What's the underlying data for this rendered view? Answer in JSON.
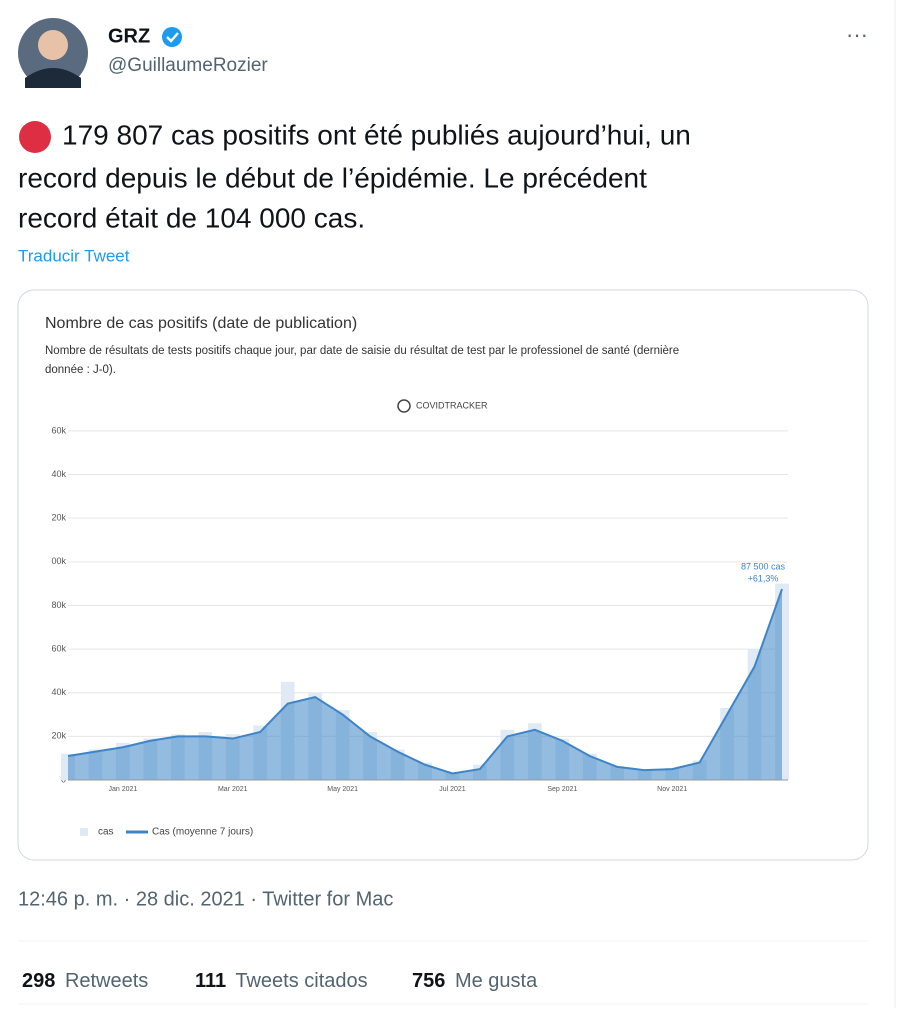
{
  "tweet": {
    "name": "GRZ",
    "handle": "@GuillaumeRozier",
    "more": "···",
    "text_lines": [
      "179 807 cas positifs ont été publiés aujourd’hui, un",
      "record depuis le début de l’épidémie. Le précédent",
      "record était de 104 000 cas."
    ],
    "translate": "Traducir Tweet",
    "meta": "12:46 p. m. · 28 dic. 2021 · Twitter for Mac",
    "stats": [
      {
        "count": "298",
        "label": "Retweets"
      },
      {
        "count": "111",
        "label": "Tweets citados"
      },
      {
        "count": "756",
        "label": "Me gusta"
      }
    ]
  },
  "chart_data": {
    "type": "line",
    "title": "Nombre de cas positifs (date de publication)",
    "subtitle_lines": [
      "Nombre de résultats de tests positifs chaque jour, par date de saisie du résultat de test par le professionel de santé (dernière",
      "donnée : J-0)."
    ],
    "logo": "COVIDTRACKER",
    "annotations": [
      "87 500 cas",
      "+61,3%"
    ],
    "categories": [
      null,
      null,
      "Jan 2021",
      null,
      null,
      null,
      "Mar 2021",
      null,
      null,
      null,
      "May 2021",
      null,
      null,
      null,
      "Jul 2021",
      null,
      null,
      null,
      "Sep 2021",
      null,
      null,
      null,
      "Nov 2021",
      null,
      null,
      null,
      null
    ],
    "series": [
      {
        "name": "cas",
        "color": "#dfeaf5",
        "values": [
          12000,
          14000,
          17000,
          19000,
          21000,
          22000,
          21000,
          25000,
          45000,
          40000,
          32000,
          22000,
          14000,
          8000,
          3500,
          7000,
          23000,
          26000,
          19000,
          12000,
          6500,
          5000,
          5500,
          9000,
          33000,
          60000,
          90000
        ]
      },
      {
        "name": "Cas (moyenne 7 jours)",
        "color": "#3d85c6",
        "values": [
          11000,
          13000,
          15000,
          18000,
          20000,
          20000,
          19000,
          22000,
          35000,
          38000,
          30000,
          20000,
          13000,
          7000,
          3000,
          5000,
          20000,
          23000,
          18000,
          11000,
          6000,
          4500,
          5000,
          8000,
          30000,
          52000,
          87500
        ]
      }
    ],
    "ylim": [
      0,
      165000
    ],
    "yticks": [
      0,
      {
        "value": 20000,
        "label": "20k"
      },
      {
        "value": 40000,
        "label": "40k"
      },
      {
        "value": 60000,
        "label": "60k"
      },
      {
        "value": 80000,
        "label": "80k"
      },
      {
        "value": 100000,
        "label": "00k"
      },
      {
        "value": 120000,
        "label": "20k"
      },
      {
        "value": 140000,
        "label": "40k"
      },
      {
        "value": 160000,
        "label": "60k"
      }
    ],
    "grid": true
  }
}
